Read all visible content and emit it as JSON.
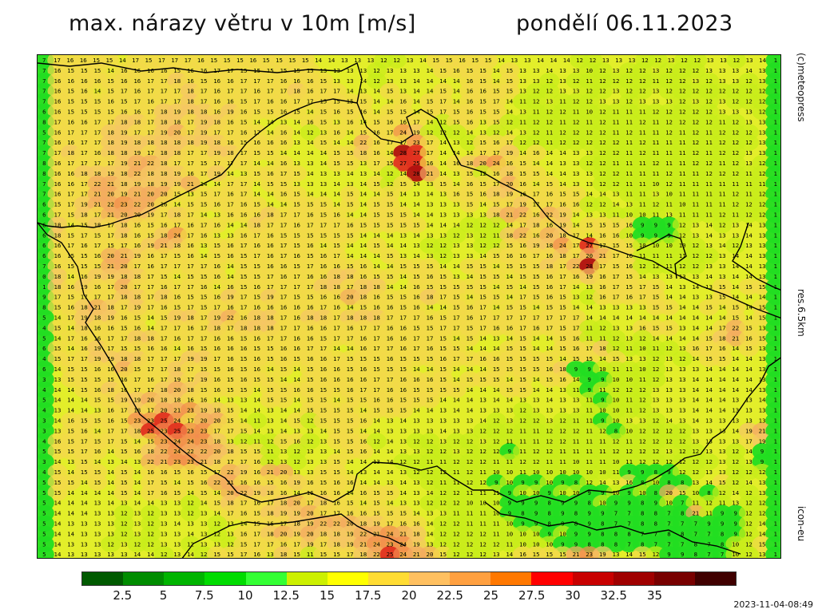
{
  "title": "max. nárazy větru v 10m [m/s]",
  "date": "pondělí 06.11.2023",
  "copyright": "(c)meteopress",
  "resolution": "res.6.5km",
  "model": "icon-eu",
  "timestamp": "2023-11-04-08:49",
  "legend": {
    "colors": [
      "#005a00",
      "#008c00",
      "#00b400",
      "#00dc00",
      "#33ff33",
      "#ccf000",
      "#ffff00",
      "#ffdc33",
      "#ffc060",
      "#ffa040",
      "#ff7800",
      "#ff0000",
      "#c80000",
      "#a00000",
      "#780000",
      "#400000"
    ],
    "tick_labels": [
      "2.5",
      "5",
      "7.5",
      "10",
      "12.5",
      "15",
      "17.5",
      "20",
      "22.5",
      "25",
      "27.5",
      "30",
      "32.5",
      "35"
    ]
  },
  "map": {
    "rows": [
      "7 17 16 16 15 15 14 17 15 17 17 17 16 15 15 15 16 15 15 15 15 14 14 13 13 13 12 12 13 14 15 15 16 15 15 14 13 13 14 14 14 12 12 13 13 13 12 12 13 12 12 13 13 12 13 14 1",
      "7 16 15 15 15 14 16 16 16 16 15 16 16 17 17 15 15 15 15 15 15 13 13 13 13 12 13 13 13 14 15 16 15 15 14 15 13 13 14 13 13 10 12 13 12 12 13 12 12 12 13 13 13 14 13 1",
      "7 16 16 16 16 15 16 16 17 17 18 16 15 16 16 17 17 17 16 16 16 15 13 13 14 12 13 13 14 14 14 14 16 15 14 15 13 13 12 13 12 11 12 12 12 12 11 12 12 13 12 13 13 12 13 1",
      "7 16 15 16 14 15 17 16 17 17 17 18 17 16 17 17 16 17 17 18 16 17 17 14 13 14 15 13 14 14 15 14 16 16 15 15 13 12 12 13 13 12 12 13 12 12 13 12 12 12 12 12 12 12 12 1",
      "7 16 15 15 15 16 15 17 16 17 17 18 17 16 16 15 17 16 16 17 17 15 15 15 15 14 14 16 14 15 17 14 16 15 17 14 11 12 13 11 12 12 13 13 12 13 13 13 12 13 12 13 12 12 12 1",
      "6 16 15 15 15 15 16 16 17 18 19 18 18 16 19 16 15 15 16 15 14 15 16 15 16 14 15 15 14 15 17 15 16 15 15 14 13 11 12 12 11 10 12 11 11 11 12 12 12 12 12 13 13 13 12 1",
      "8 17 16 16 17 17 18 18 17 18 18 17 19 18 16 15 14 14 13 14 16 15 13 16 14 15 16 16 17 14 12 15 16 13 15 12 11 12 12 11 12 11 12 11 11 12 11 12 12 12 12 11 12 13 13 1",
      "5 16 17 17 17 18 19 17 17 19 20 17 19 17 17 16 17 14 16 14 12 13 16 14 15 16 17 24 19 12 12 12 14 13 12 14 13 12 11 12 12 12 12 11 12 11 11 12 11 12 11 12 12 12 13 1",
      "7 16 16 17 17 18 19 18 18 18 18 18 19 18 16 15 16 16 16 13 14 15 14 14 22 16 17 17 23 17 14 13 12 15 16 17 12 12 11 12 12 12 12 12 11 12 11 11 11 12 11 12 12 12 13 1",
      "7 17 18 17 16 18 18 19 17 18 18 17 17 19 18 17 15 15 14 14 14 14 15 15 18 16 14 28 27 17 14 14 14 17 17 19 14 16 14 14 13 13 12 12 11 12 11 11 11 12 11 12 12 13 13 1",
      "8 16 17 17 17 17 19 21 22 18 17 17 15 17 17 17 14 14 16 13 13 14 15 15 13 17 15 27 25 16 14 16 18 20 24 16 15 14 14 13 13 12 12 11 11 11 12 11 11 12 12 11 12 13 12 1",
      "8 16 16 18 18 19 18 22 18 18 19 16 17 19 14 13 15 16 17 15 14 13 13 14 13 14 12 14 28 21 14 13 15 12 16 18 15 15 14 14 13 13 12 12 11 11 11 12 11 11 12 12 12 11 12 1",
      "7 16 16 17 22 21 18 19 18 19 19 21 14 14 17 17 14 15 15 13 13 13 14 13 14 15 12 15 14 13 15 14 16 15 17 20 16 14 15 14 13 13 12 12 11 11 10 12 11 11 11 11 11 11 11 1",
      "7 16 17 17 21 20 19 21 20 20 15 13 15 17 16 17 14 14 16 15 14 14 14 15 14 14 15 14 13 14 13 16 15 16 18 19 16 17 16 15 15 14 14 13 11 11 13 10 11 11 11 11 12 11 12 1",
      "6 15 17 19 21 22 23 22 20 16 14 15 15 16 17 16 15 14 14 15 15 15 14 15 14 15 15 14 14 13 13 13 15 14 15 17 19 17 17 16 16 12 12 14 13 11 12 11 10 11 11 11 12 12 12 1",
      "6 17 15 18 17 21 20 20 19 17 18 17 14 13 16 16 16 18 17 17 16 15 16 14 14 15 15 15 14 14 13 13 13 13 18 21 22 16 22 19 14 13 13 11 10 10 11 13 11 11 11 12 11 12 12 1",
      "6 18 14 15 18 17 18 16 15 16 17 16 17 16 14 14 18 17 17 16 17 17 17 16 15 15 15 15 15 14 14 14 12 12 12 14 17 18 16 19 14 15 15 15 16 9 9 9 12 13 14 12 13 14 13 1",
      "6 18 15 17 15 17 18 16 15 18 24 17 16 13 13 16 17 16 15 15 15 15 15 15 14 14 14 13 14 13 13 12 13 12 11 18 22 16 20 18 17 14 16 16 10 9 9 9 12 13 14 13 13 14 13 1",
      "6 16 17 16 17 15 17 16 19 21 18 16 13 15 16 17 16 16 17 15 16 14 15 14 14 15 14 14 13 12 12 13 13 12 12 15 16 19 18 24 17 27 17 15 15 10 10 10 10 12 13 14 12 13 13 1",
      "6 16 15 15 16 20 21 19 16 17 15 16 14 15 16 15 17 16 17 16 15 16 17 14 14 14 15 13 14 13 12 13 13 14 15 16 16 17 16 18 17 20 21 17 16 11 11 11 11 12 12 13 14 14 13 1",
      "7 16 15 15 15 21 20 17 16 17 17 17 17 16 14 15 15 16 16 15 17 16 16 15 16 14 14 15 15 15 14 14 15 15 14 15 15 15 18 17 22 28 17 15 16 12 12 11 12 12 13 13 14 14 13 1",
      "0 18 14 16 19 19 18 18 17 15 14 15 15 16 14 15 15 17 16 17 16 16 18 18 16 15 15 14 15 16 15 13 14 15 15 14 15 15 16 17 16 19 16 17 15 14 13 13 13 13 14 13 14 14 13 1",
      "1 18 16 19 16 17 20 17 17 16 17 17 16 14 16 15 16 17 17 17 17 18 18 17 18 18 14 14 16 15 15 15 15 15 14 15 14 15 16 17 14 13 16 17 15 17 15 14 13 14 13 15 14 15 15 1",
      "9 17 15 17 17 17 18 18 17 18 16 15 15 16 19 17 15 19 17 15 15 16 16 20 18 16 15 15 16 18 17 15 14 15 15 14 17 15 16 15 13 12 16 17 16 17 15 14 14 13 13 15 14 14 14 1",
      "8 15 16 18 21 18 17 19 17 16 15 17 15 17 16 17 16 16 16 16 16 17 16 14 15 16 16 15 16 14 14 15 16 17 14 15 15 14 15 15 14 14 13 13 13 13 15 15 14 14 15 14 15 14 15 1",
      "5 14 17 19 18 19 16 15 14 15 19 18 17 19 22 16 18 18 17 16 18 18 17 18 18 18 17 17 17 16 15 17 16 17 17 17 17 17 17 17 17 14 14 14 14 14 14 14 14 14 14 14 15 14 15 1",
      "4 15 14 18 16 16 15 16 14 17 17 16 17 18 17 18 18 18 17 17 16 16 17 16 17 17 16 16 15 15 17 17 15 17 16 16 17 16 17 15 17 11 12 13 13 16 15 15 13 14 14 17 22 15 13 1",
      "5 14 17 16 16 17 17 18 18 17 16 17 17 16 16 15 16 17 17 16 16 15 17 17 16 17 16 16 17 17 15 14 15 14 13 14 15 14 14 15 16 11 11 12 13 12 14 14 14 14 15 18 21 16 15 1",
      "6 15 14 16 19 17 15 15 16 16 14 16 15 16 16 16 15 15 16 16 17 17 14 14 16 17 17 16 17 16 15 15 14 14 14 15 15 14 14 15 16 17 18 12 11 10 11 12 13 16 17 16 14 15 13 1",
      "4 15 17 17 19 19 18 18 17 17 17 19 19 17 16 15 16 15 16 15 16 16 17 15 15 15 16 15 15 15 16 17 17 16 16 15 15 15 15 14 15 15 14 15 13 13 12 13 12 14 15 15 14 14 13 1",
      "6 14 15 15 16 16 20 15 17 17 18 17 15 15 16 15 16 14 15 14 15 16 16 15 16 15 15 15 14 14 15 14 14 14 15 15 15 15 16 18 9 9 10 11 11 10 12 13 13 13 14 14 14 14 13 1",
      "3 13 15 15 15 15 16 17 16 17 19 17 19 16 15 16 15 15 14 14 15 16 16 16 16 17 17 16 16 16 15 14 15 15 15 14 15 14 15 16 14 9 9 10 10 11 12 13 13 14 14 14 14 14 13 1",
      "4 14 14 15 16 18 16 17 17 18 20 18 15 16 15 15 14 15 15 16 16 15 15 16 17 17 16 16 15 15 15 15 14 14 14 15 15 14 14 13 11 9 11 12 12 12 13 13 13 14 14 14 14 14 13 1",
      "5 14 14 14 15 15 19 19 20 18 18 16 16 14 13 13 14 15 15 14 15 15 14 15 15 16 16 15 15 15 14 14 14 13 14 14 13 13 14 13 13 11 9 10 11 12 13 13 13 14 14 14 13 13 14 1",
      "4 13 14 14 13 16 17 18 17 20 21 23 19 18 15 14 14 13 14 14 15 15 15 15 14 15 15 15 14 14 13 14 14 13 13 13 12 13 13 13 13 11 10 10 11 12 13 13 13 14 14 14 13 13 13 1",
      "3 14 16 15 15 16 15 23 23 25 24 17 20 20 15 14 11 13 14 15 12 15 15 15 16 14 13 14 13 13 13 13 13 14 12 13 12 12 13 12 11 11 9 10 13 13 12 14 13 14 13 13 13 13 13 1",
      "3 13 15 16 14 17 17 18 25 23 25 23 23 17 17 15 14 13 14 13 13 14 15 15 14 14 13 13 13 13 14 13 13 12 12 12 11 11 12 12 12 11 12 8 10 12 12 12 12 13 13 13 14 19 21 1",
      "4 16 15 17 15 17 15 14 15 23 24 24 23 18 13 12 11 12 15 16 12 13 15 15 16 12 14 13 12 12 13 12 12 13 12 11 11 11 12 12 11 11 11 12 11 12 12 12 12 13 13 13 13 17 19 1",
      "5 15 15 17 16 14 15 16 18 22 24 22 22 20 18 15 15 11 13 12 13 13 14 15 16 14 14 13 13 12 12 13 12 12 12 9 11 12 12 11 11 11 11 12 12 12 12 13 12 12 13 13 12 14 9 1",
      "3 14 13 15 14 13 14 13 22 21 23 23 21 18 17 17 16 12 13 12 13 13 15 14 14 13 14 12 12 11 11 12 12 12 11 11 12 12 11 11 10 11 11 10 11 12 12 12 12 12 12 13 12 13 9 1",
      "4 15 14 15 15 14 15 14 16 16 15 16 15 17 22 19 16 21 20 13 13 15 15 14 13 14 14 13 12 12 12 11 12 11 10 10 11 10 10 10 10 10 10 11 9 9 8 9 12 12 13 13 12 12 12 1",
      "5 15 15 14 15 14 15 14 17 15 14 15 16 22 21 16 16 15 16 19 16 15 16 16 14 14 13 14 13 12 11 11 12 12 9 10 9 9 10 9 8 12 14 13 16 8 10 8 8 13 14 15 12 14 13 1",
      "5 15 14 14 14 14 15 14 17 16 15 14 15 14 20 22 19 18 16 14 16 16 16 14 16 15 15 14 13 14 12 12 11 11 11 9 10 10 9 10 10 9 9 10 9 10 8 20 15 10 8 12 14 12 13 1",
      "5 14 14 14 13 14 13 14 14 13 13 12 14 15 18 17 16 17 18 20 17 18 16 15 14 15 14 13 13 12 12 12 10 10 10 9 9 9 8 9 9 8 10 9 9 8 9 10 7 11 12 11 13 12 12 1",
      "5 14 14 14 13 13 12 13 12 13 13 12 13 14 17 16 15 18 19 19 20 17 17 16 16 15 15 15 14 13 13 11 11 11 10 9 8 9 8 9 8 9 9 7 7 8 8 7 8 21 11 9 9 12 12 1",
      "5 14 13 13 13 13 12 13 12 13 14 13 13 12 13 14 15 16 17 18 19 22 22 20 18 19 17 16 16 14 12 12 11 11 11 10 9 9 8 9 8 9 8 7 7 8 8 7 7 7 9 9 9 12 14 1",
      "5 14 14 13 13 13 12 13 12 13 13 14 13 12 13 16 17 18 20 19 20 18 18 19 22 21 24 21 18 14 12 12 12 12 11 10 10 10 9 10 9 9 8 8 8 7 7 8 8 7 7 8 9 12 14 1",
      "5 14 13 13 13 12 13 12 12 13 13 12 13 13 12 15 17 17 16 17 19 17 18 19 21 24 23 24 19 13 12 12 12 12 12 11 10 10 10 9 9 8 8 8 7 8 7 7 7 8 7 8 10 12 15 1",
      "5 14 13 13 13 13 13 14 14 12 13 14 12 15 15 17 16 13 18 15 11 15 15 17 18 22 25 24 21 20 15 12 12 12 13 14 16 15 15 15 21 23 19 13 14 15 12 9 9 8 7 7 10 12 13 1"
    ]
  }
}
